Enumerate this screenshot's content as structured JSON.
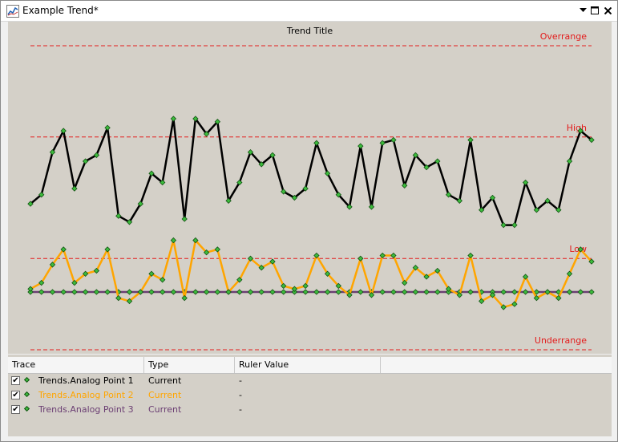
{
  "window": {
    "title": "Example Trend*"
  },
  "chart": {
    "title": "Trend Title",
    "limits": {
      "overrange": "Overrange",
      "high": "High",
      "low": "Low",
      "underrange": "Underrange"
    }
  },
  "colors": {
    "limit_line": "#e31b1b",
    "marker_fill": "#3dbb3d",
    "plot_background": "#d4d0c8"
  },
  "legend": {
    "columns": [
      "Trace",
      "Type",
      "Ruler Value"
    ],
    "rows": [
      {
        "trace": "Trends.Analog Point 1",
        "type": "Current",
        "ruler": "-",
        "color": "#000000",
        "checked": true
      },
      {
        "trace": "Trends.Analog Point 2",
        "type": "Current",
        "ruler": "-",
        "color": "#ffa500",
        "checked": true
      },
      {
        "trace": "Trends.Analog Point 3",
        "type": "Current",
        "ruler": "-",
        "color": "#6b3e73",
        "checked": true
      }
    ]
  },
  "chart_data": {
    "type": "line",
    "title": "Trend Title",
    "y_range_note": "values in percent of range between Underrange (0) and Overrange (100)",
    "limits": {
      "overrange": 100,
      "high": 70,
      "low": 30,
      "underrange": 0
    },
    "series": [
      {
        "name": "Trends.Analog Point 1",
        "color": "#000000",
        "values": [
          48,
          51,
          65,
          72,
          53,
          62,
          64,
          73,
          44,
          42,
          48,
          58,
          55,
          76,
          43,
          76,
          71,
          75,
          49,
          55,
          65,
          61,
          64,
          52,
          50,
          53,
          68,
          58,
          51,
          47,
          67,
          47,
          68,
          69,
          54,
          64,
          60,
          62,
          51,
          49,
          69,
          46,
          50,
          41,
          41,
          55,
          46,
          49,
          46,
          62,
          72,
          69
        ]
      },
      {
        "name": "Trends.Analog Point 2",
        "color": "#ffa500",
        "values": [
          20,
          22,
          28,
          33,
          22,
          25,
          26,
          33,
          17,
          16,
          19,
          25,
          23,
          36,
          17,
          36,
          32,
          33,
          19,
          23,
          30,
          27,
          29,
          21,
          20,
          21,
          31,
          25,
          21,
          18,
          30,
          18,
          31,
          31,
          22,
          27,
          24,
          26,
          20,
          18,
          31,
          16,
          18,
          14,
          15,
          24,
          17,
          19,
          17,
          25,
          33,
          29
        ]
      },
      {
        "name": "Trends.Analog Point 3",
        "color": "#6b3e73",
        "values": [
          19,
          19,
          19,
          19,
          19,
          19,
          19,
          19,
          19,
          19,
          19,
          19,
          19,
          19,
          19,
          19,
          19,
          19,
          19,
          19,
          19,
          19,
          19,
          19,
          19,
          19,
          19,
          19,
          19,
          19,
          19,
          19,
          19,
          19,
          19,
          19,
          19,
          19,
          19,
          19,
          19,
          19,
          19,
          19,
          19,
          19,
          19,
          19,
          19,
          19,
          19,
          19
        ]
      }
    ]
  }
}
